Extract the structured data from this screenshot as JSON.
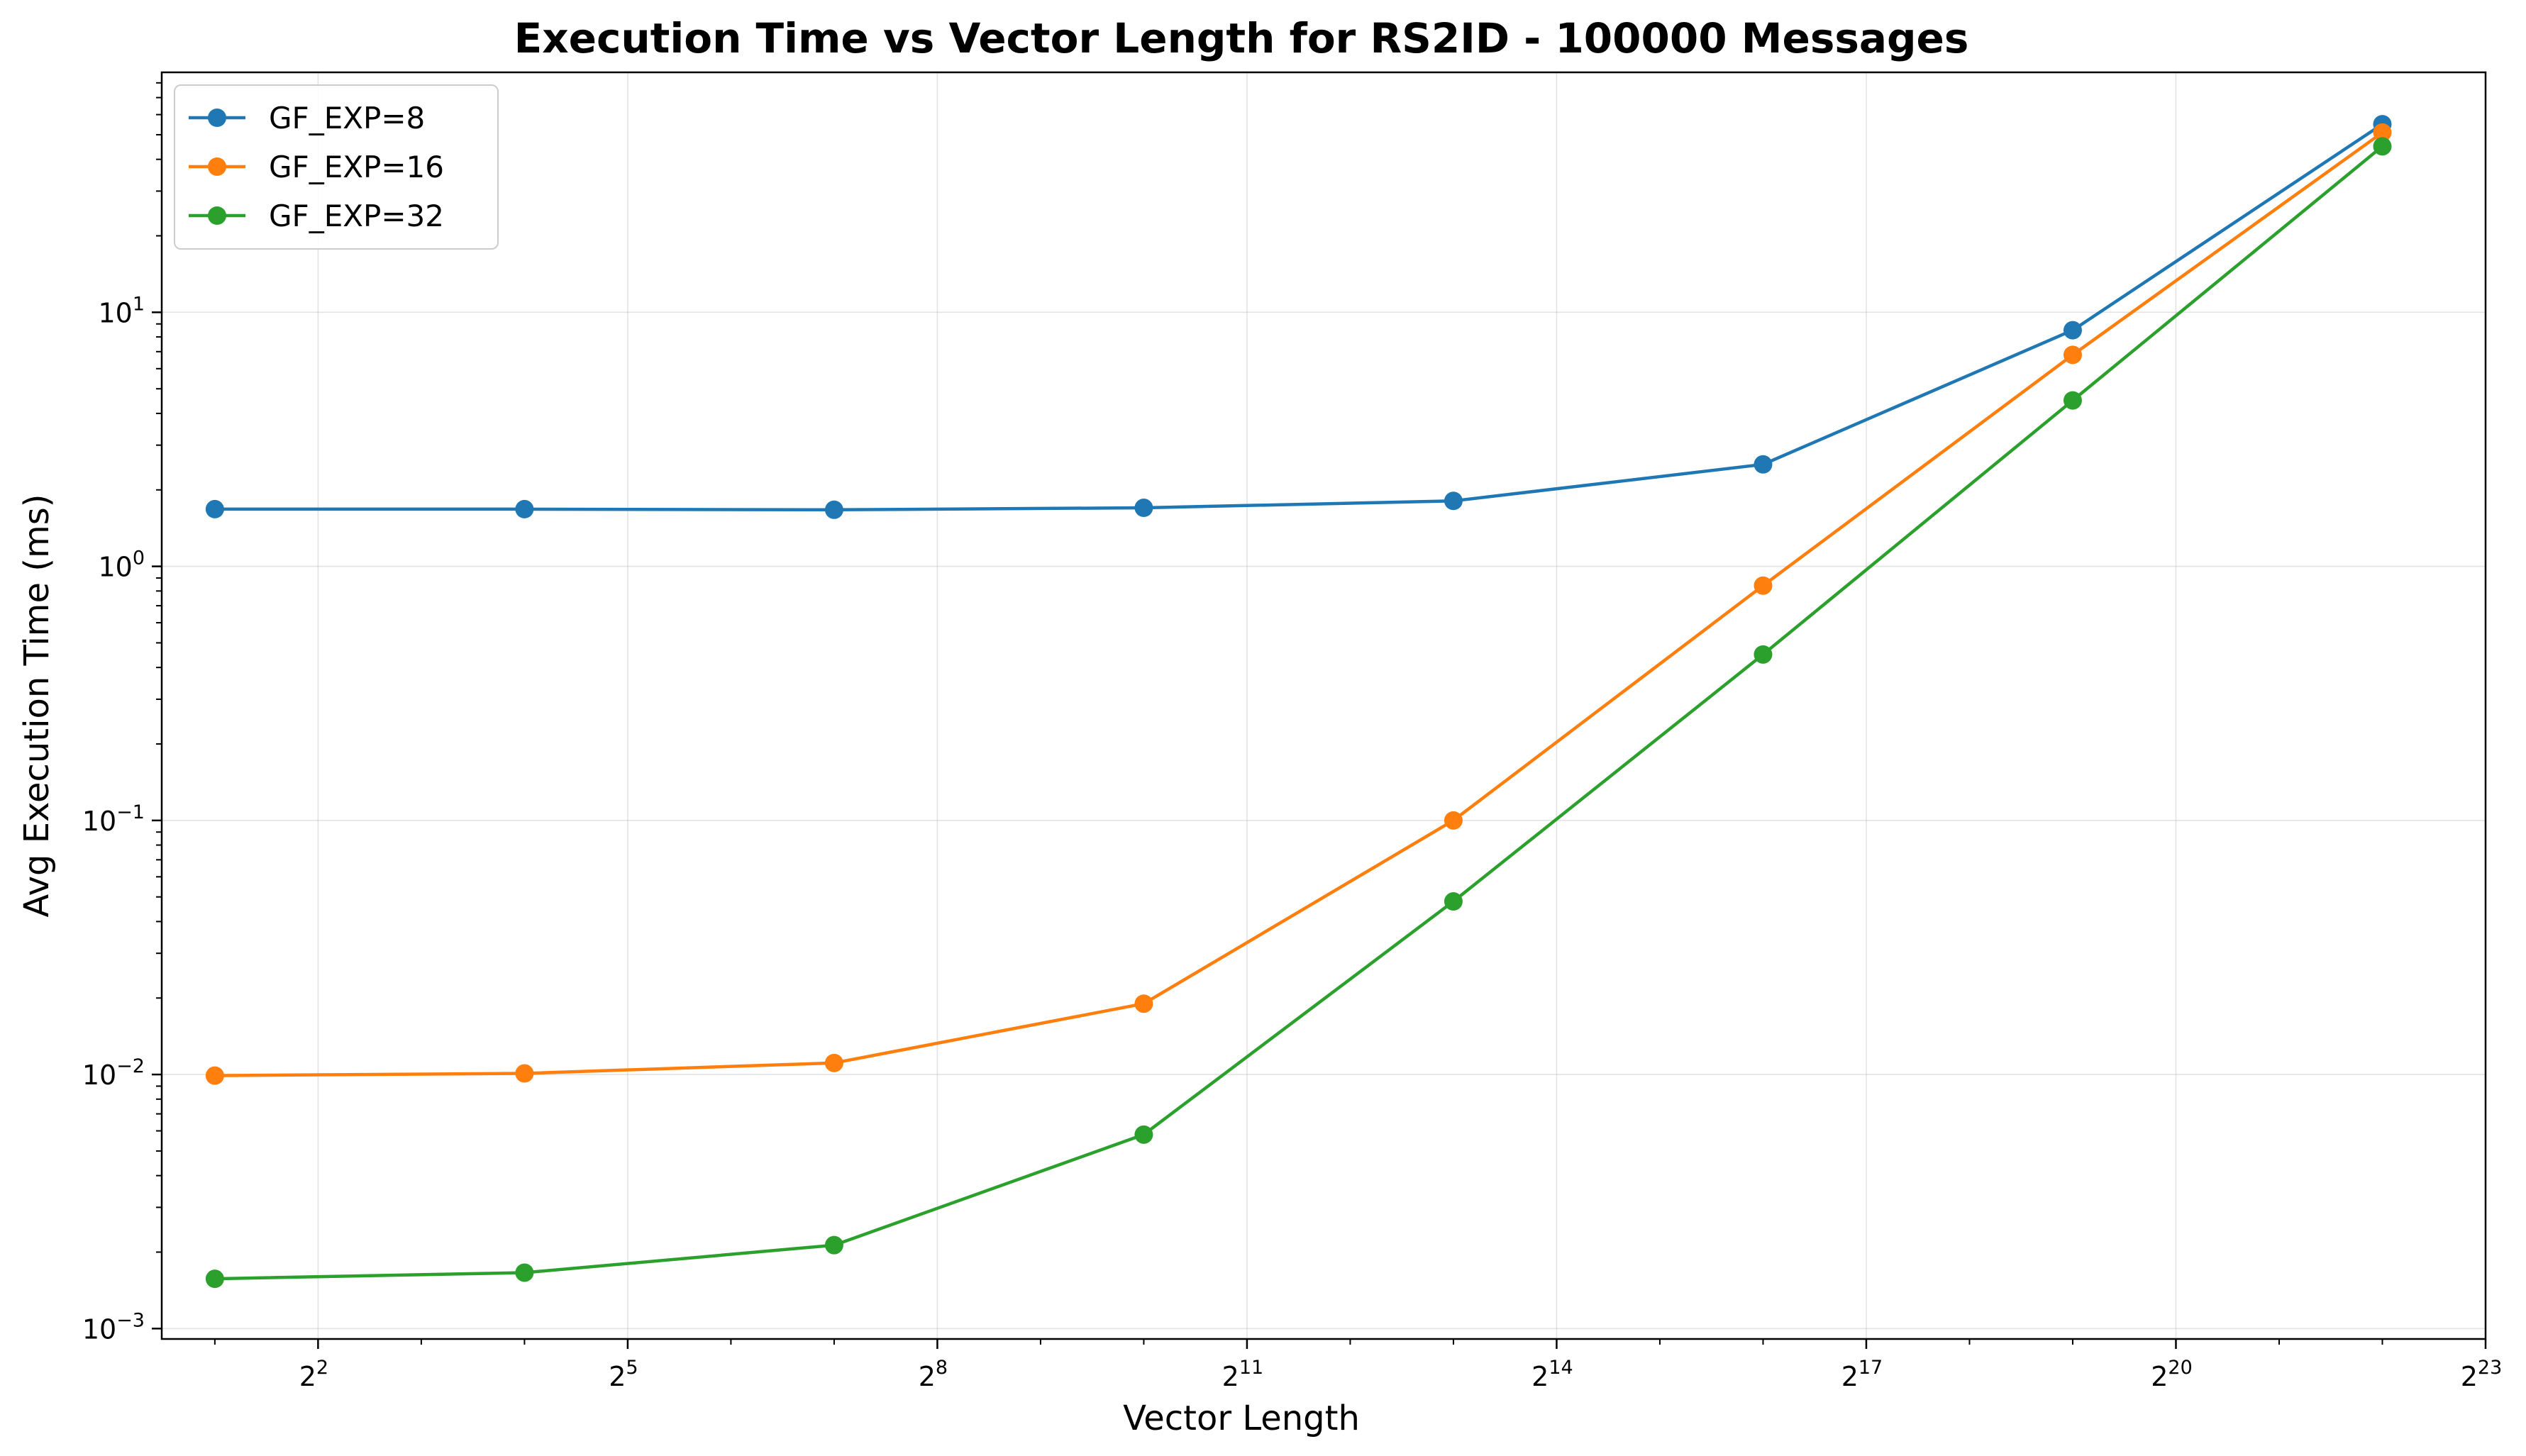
{
  "chart_data": {
    "type": "line",
    "title": "Execution Time vs Vector Length for RS2ID - 100000 Messages",
    "xlabel": "Vector Length",
    "ylabel": "Avg Execution Time (ms)",
    "x_scale": "log2",
    "y_scale": "log10",
    "xlim": [
      1.4,
      8388608
    ],
    "ylim": [
      0.00091,
      88
    ],
    "x_ticks": [
      {
        "value": 4,
        "base": "2",
        "exp": "2"
      },
      {
        "value": 32,
        "base": "2",
        "exp": "5"
      },
      {
        "value": 256,
        "base": "2",
        "exp": "8"
      },
      {
        "value": 2048,
        "base": "2",
        "exp": "11"
      },
      {
        "value": 16384,
        "base": "2",
        "exp": "14"
      },
      {
        "value": 131072,
        "base": "2",
        "exp": "17"
      },
      {
        "value": 1048576,
        "base": "2",
        "exp": "20"
      },
      {
        "value": 8388608,
        "base": "2",
        "exp": "23"
      }
    ],
    "y_ticks": [
      {
        "value": 0.001,
        "base": "10",
        "exp": "−3"
      },
      {
        "value": 0.01,
        "base": "10",
        "exp": "−2"
      },
      {
        "value": 0.1,
        "base": "10",
        "exp": "−1"
      },
      {
        "value": 1,
        "base": "10",
        "exp": "0"
      },
      {
        "value": 10,
        "base": "10",
        "exp": "1"
      }
    ],
    "x": [
      2,
      16,
      128,
      1024,
      8192,
      65536,
      524288,
      4194304
    ],
    "series": [
      {
        "name": "GF_EXP=8",
        "color": "#1f77b4",
        "values": [
          1.68,
          1.68,
          1.67,
          1.7,
          1.81,
          2.52,
          8.5,
          55
        ]
      },
      {
        "name": "GF_EXP=16",
        "color": "#ff7f0e",
        "values": [
          0.0099,
          0.0101,
          0.0111,
          0.019,
          0.1,
          0.84,
          6.8,
          51
        ]
      },
      {
        "name": "GF_EXP=32",
        "color": "#2ca02c",
        "values": [
          0.00157,
          0.00166,
          0.00213,
          0.0058,
          0.048,
          0.45,
          4.5,
          45
        ]
      }
    ],
    "grid": true,
    "legend_position": "top-left"
  }
}
